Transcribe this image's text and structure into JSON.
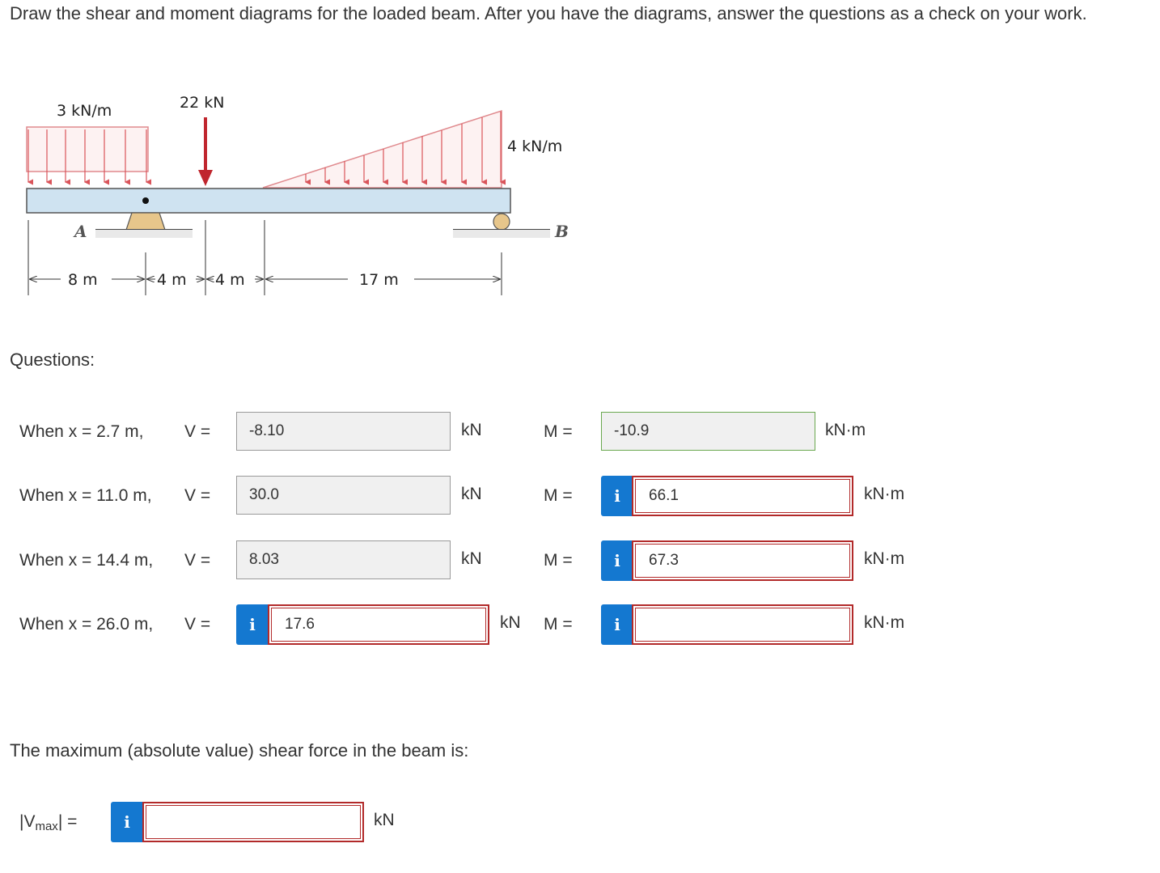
{
  "prompt": "Draw the shear and moment diagrams for the loaded beam. After you have the diagrams, answer the questions as a check on your work.",
  "figure": {
    "udl_label": "3 kN/m",
    "point_load_label": "22 kN",
    "triangular_load_label": "4 kN/m",
    "support_a_label": "A",
    "support_b_label": "B",
    "dim_1": "8 m",
    "dim_2": "4 m",
    "dim_3": "4 m",
    "dim_4": "17 m"
  },
  "questions_heading": "Questions:",
  "rows": [
    {
      "when": "When x = 2.7 m,",
      "v_label": "V =",
      "v_value": "-8.10",
      "v_unit": "kN",
      "m_label": "M =",
      "m_value": "-10.9",
      "m_unit": "kN·m"
    },
    {
      "when": "When x = 11.0 m,",
      "v_label": "V =",
      "v_value": "30.0",
      "v_unit": "kN",
      "m_label": "M =",
      "m_value": "66.1",
      "m_unit": "kN·m"
    },
    {
      "when": "When x = 14.4 m,",
      "v_label": "V =",
      "v_value": "8.03",
      "v_unit": "kN",
      "m_label": "M =",
      "m_value": "67.3",
      "m_unit": "kN·m"
    },
    {
      "when": "When x = 26.0 m,",
      "v_label": "V =",
      "v_value": "17.6",
      "v_unit": "kN",
      "m_label": "M =",
      "m_value": "",
      "m_unit": "kN·m"
    }
  ],
  "info_glyph": "i",
  "max_shear_text": "The maximum (absolute value) shear force in the beam is:",
  "vmax": {
    "label_open": "|V",
    "label_sub": "max",
    "label_close": "| =",
    "value": "",
    "unit": "kN"
  }
}
